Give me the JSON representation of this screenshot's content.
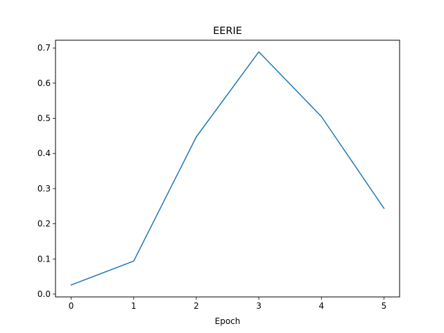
{
  "chart_data": {
    "type": "line",
    "title": "EERIE",
    "xlabel": "Epoch",
    "ylabel": "",
    "x": [
      0,
      1,
      2,
      3,
      4,
      5
    ],
    "series": [
      {
        "values": [
          0.026,
          0.094,
          0.447,
          0.689,
          0.505,
          0.244
        ],
        "color": "#1f77b4"
      }
    ],
    "xlim": [
      -0.25,
      5.25
    ],
    "ylim": [
      -0.008,
      0.722
    ],
    "xticks": [
      "0",
      "1",
      "2",
      "3",
      "4",
      "5"
    ],
    "yticks": [
      "0.0",
      "0.1",
      "0.2",
      "0.3",
      "0.4",
      "0.5",
      "0.6",
      "0.7"
    ],
    "grid": false,
    "legend": "none"
  }
}
